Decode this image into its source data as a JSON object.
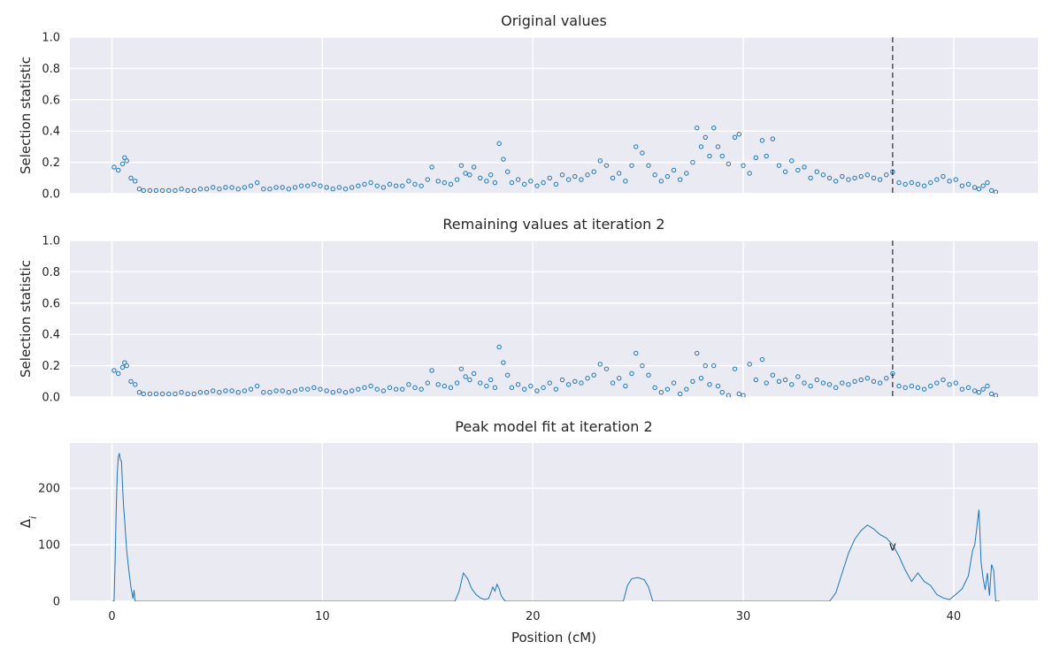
{
  "chart_data": [
    {
      "type": "scatter",
      "title": "Original values",
      "xlabel": "",
      "ylabel": "Selection statistic",
      "xlim": [
        -2,
        44
      ],
      "ylim": [
        0,
        1
      ],
      "yticks": [
        0.0,
        0.2,
        0.4,
        0.6,
        0.8,
        1.0
      ],
      "ytick_labels": [
        "0.0",
        "0.2",
        "0.4",
        "0.6",
        "0.8",
        "1.0"
      ],
      "grid": true,
      "marker": "hollow-circle",
      "series_color": "#1f77b4",
      "vline": {
        "x": 37.1,
        "style": "dashed",
        "color": "#000000"
      },
      "x": [
        0.1,
        0.3,
        0.5,
        0.6,
        0.7,
        0.9,
        1.1,
        1.3,
        1.5,
        1.8,
        2.1,
        2.4,
        2.7,
        3.0,
        3.3,
        3.6,
        3.9,
        4.2,
        4.5,
        4.8,
        5.1,
        5.4,
        5.7,
        6.0,
        6.3,
        6.6,
        6.9,
        7.2,
        7.5,
        7.8,
        8.1,
        8.4,
        8.7,
        9.0,
        9.3,
        9.6,
        9.9,
        10.2,
        10.5,
        10.8,
        11.1,
        11.4,
        11.7,
        12.0,
        12.3,
        12.6,
        12.9,
        13.2,
        13.5,
        13.8,
        14.1,
        14.4,
        14.7,
        15.0,
        15.2,
        15.5,
        15.8,
        16.1,
        16.4,
        16.6,
        16.8,
        17.0,
        17.2,
        17.5,
        17.8,
        18.0,
        18.2,
        18.4,
        18.6,
        18.8,
        19.0,
        19.3,
        19.6,
        19.9,
        20.2,
        20.5,
        20.8,
        21.1,
        21.4,
        21.7,
        22.0,
        22.3,
        22.6,
        22.9,
        23.2,
        23.5,
        23.8,
        24.1,
        24.4,
        24.7,
        24.9,
        25.2,
        25.5,
        25.8,
        26.1,
        26.4,
        26.7,
        27.0,
        27.3,
        27.6,
        27.8,
        28.0,
        28.2,
        28.4,
        28.6,
        28.8,
        29.0,
        29.3,
        29.6,
        29.8,
        30.0,
        30.3,
        30.6,
        30.9,
        31.1,
        31.4,
        31.7,
        32.0,
        32.3,
        32.6,
        32.9,
        33.2,
        33.5,
        33.8,
        34.1,
        34.4,
        34.7,
        35.0,
        35.3,
        35.6,
        35.9,
        36.2,
        36.5,
        36.8,
        37.1,
        37.4,
        37.7,
        38.0,
        38.3,
        38.6,
        38.9,
        39.2,
        39.5,
        39.8,
        40.1,
        40.4,
        40.7,
        41.0,
        41.2,
        41.4,
        41.6,
        41.8,
        42.0
      ],
      "y": [
        0.17,
        0.15,
        0.19,
        0.23,
        0.21,
        0.1,
        0.08,
        0.03,
        0.02,
        0.02,
        0.02,
        0.02,
        0.02,
        0.02,
        0.03,
        0.02,
        0.02,
        0.03,
        0.03,
        0.04,
        0.03,
        0.04,
        0.04,
        0.03,
        0.04,
        0.05,
        0.07,
        0.03,
        0.03,
        0.04,
        0.04,
        0.03,
        0.04,
        0.05,
        0.05,
        0.06,
        0.05,
        0.04,
        0.03,
        0.04,
        0.03,
        0.04,
        0.05,
        0.06,
        0.07,
        0.05,
        0.04,
        0.06,
        0.05,
        0.05,
        0.08,
        0.06,
        0.05,
        0.09,
        0.17,
        0.08,
        0.07,
        0.06,
        0.09,
        0.18,
        0.13,
        0.12,
        0.17,
        0.1,
        0.08,
        0.12,
        0.07,
        0.32,
        0.22,
        0.14,
        0.07,
        0.09,
        0.06,
        0.08,
        0.05,
        0.07,
        0.1,
        0.06,
        0.12,
        0.09,
        0.11,
        0.09,
        0.12,
        0.14,
        0.21,
        0.18,
        0.1,
        0.13,
        0.08,
        0.18,
        0.3,
        0.26,
        0.18,
        0.12,
        0.08,
        0.11,
        0.15,
        0.09,
        0.13,
        0.2,
        0.42,
        0.3,
        0.36,
        0.24,
        0.42,
        0.3,
        0.24,
        0.19,
        0.36,
        0.38,
        0.18,
        0.13,
        0.23,
        0.34,
        0.24,
        0.35,
        0.18,
        0.14,
        0.21,
        0.15,
        0.17,
        0.1,
        0.14,
        0.12,
        0.1,
        0.08,
        0.11,
        0.09,
        0.1,
        0.11,
        0.12,
        0.1,
        0.09,
        0.12,
        0.14,
        0.07,
        0.06,
        0.07,
        0.06,
        0.05,
        0.07,
        0.09,
        0.11,
        0.08,
        0.09,
        0.05,
        0.06,
        0.04,
        0.03,
        0.05,
        0.07,
        0.02,
        0.01
      ]
    },
    {
      "type": "scatter",
      "title": "Remaining values at iteration 2",
      "xlabel": "",
      "ylabel": "Selection statistic",
      "xlim": [
        -2,
        44
      ],
      "ylim": [
        0,
        1
      ],
      "yticks": [
        0.0,
        0.2,
        0.4,
        0.6,
        0.8,
        1.0
      ],
      "ytick_labels": [
        "0.0",
        "0.2",
        "0.4",
        "0.6",
        "0.8",
        "1.0"
      ],
      "grid": true,
      "marker": "hollow-circle",
      "series_color": "#1f77b4",
      "vline": {
        "x": 37.1,
        "style": "dashed",
        "color": "#000000"
      },
      "x": [
        0.1,
        0.3,
        0.5,
        0.6,
        0.7,
        0.9,
        1.1,
        1.3,
        1.5,
        1.8,
        2.1,
        2.4,
        2.7,
        3.0,
        3.3,
        3.6,
        3.9,
        4.2,
        4.5,
        4.8,
        5.1,
        5.4,
        5.7,
        6.0,
        6.3,
        6.6,
        6.9,
        7.2,
        7.5,
        7.8,
        8.1,
        8.4,
        8.7,
        9.0,
        9.3,
        9.6,
        9.9,
        10.2,
        10.5,
        10.8,
        11.1,
        11.4,
        11.7,
        12.0,
        12.3,
        12.6,
        12.9,
        13.2,
        13.5,
        13.8,
        14.1,
        14.4,
        14.7,
        15.0,
        15.2,
        15.5,
        15.8,
        16.1,
        16.4,
        16.6,
        16.8,
        17.0,
        17.2,
        17.5,
        17.8,
        18.0,
        18.2,
        18.4,
        18.6,
        18.8,
        19.0,
        19.3,
        19.6,
        19.9,
        20.2,
        20.5,
        20.8,
        21.1,
        21.4,
        21.7,
        22.0,
        22.3,
        22.6,
        22.9,
        23.2,
        23.5,
        23.8,
        24.1,
        24.4,
        24.7,
        24.9,
        25.2,
        25.5,
        25.8,
        26.1,
        26.4,
        26.7,
        27.0,
        27.3,
        27.6,
        27.8,
        28.0,
        28.2,
        28.4,
        28.6,
        28.8,
        29.0,
        29.3,
        29.6,
        29.8,
        30.0,
        30.3,
        30.6,
        30.9,
        31.1,
        31.4,
        31.7,
        32.0,
        32.3,
        32.6,
        32.9,
        33.2,
        33.5,
        33.8,
        34.1,
        34.4,
        34.7,
        35.0,
        35.3,
        35.6,
        35.9,
        36.2,
        36.5,
        36.8,
        37.1,
        37.4,
        37.7,
        38.0,
        38.3,
        38.6,
        38.9,
        39.2,
        39.5,
        39.8,
        40.1,
        40.4,
        40.7,
        41.0,
        41.2,
        41.4,
        41.6,
        41.8,
        42.0
      ],
      "y": [
        0.17,
        0.15,
        0.19,
        0.22,
        0.2,
        0.1,
        0.08,
        0.03,
        0.02,
        0.02,
        0.02,
        0.02,
        0.02,
        0.02,
        0.03,
        0.02,
        0.02,
        0.03,
        0.03,
        0.04,
        0.03,
        0.04,
        0.04,
        0.03,
        0.04,
        0.05,
        0.07,
        0.03,
        0.03,
        0.04,
        0.04,
        0.03,
        0.04,
        0.05,
        0.05,
        0.06,
        0.05,
        0.04,
        0.03,
        0.04,
        0.03,
        0.04,
        0.05,
        0.06,
        0.07,
        0.05,
        0.04,
        0.06,
        0.05,
        0.05,
        0.08,
        0.06,
        0.05,
        0.09,
        0.17,
        0.08,
        0.07,
        0.06,
        0.09,
        0.18,
        0.13,
        0.11,
        0.15,
        0.09,
        0.07,
        0.11,
        0.06,
        0.32,
        0.22,
        0.14,
        0.06,
        0.08,
        0.05,
        0.07,
        0.04,
        0.06,
        0.09,
        0.05,
        0.11,
        0.08,
        0.1,
        0.09,
        0.12,
        0.14,
        0.21,
        0.18,
        0.09,
        0.12,
        0.07,
        0.15,
        0.28,
        0.2,
        0.14,
        0.06,
        0.03,
        0.05,
        0.09,
        0.02,
        0.05,
        0.1,
        0.28,
        0.12,
        0.2,
        0.08,
        0.2,
        0.07,
        0.03,
        0.01,
        0.18,
        0.02,
        0.01,
        0.21,
        0.11,
        0.24,
        0.09,
        0.14,
        0.1,
        0.11,
        0.08,
        0.13,
        0.09,
        0.07,
        0.11,
        0.09,
        0.08,
        0.06,
        0.09,
        0.08,
        0.1,
        0.11,
        0.12,
        0.1,
        0.09,
        0.12,
        0.15,
        0.07,
        0.06,
        0.07,
        0.06,
        0.05,
        0.07,
        0.09,
        0.11,
        0.08,
        0.09,
        0.05,
        0.06,
        0.04,
        0.03,
        0.05,
        0.07,
        0.02,
        0.01
      ]
    },
    {
      "type": "line",
      "title": "Peak model fit at iteration 2",
      "xlabel": "Position (cM)",
      "ylabel": "Δ",
      "ylabel_subscript": "i",
      "xlim": [
        -2,
        44
      ],
      "ylim": [
        0,
        280
      ],
      "xticks": [
        0,
        10,
        20,
        30,
        40
      ],
      "xtick_labels": [
        "0",
        "10",
        "20",
        "30",
        "40"
      ],
      "yticks": [
        0,
        100,
        200
      ],
      "ytick_labels": [
        "0",
        "100",
        "200"
      ],
      "grid": true,
      "series_color": "#1f77b4",
      "annotation": {
        "text": "v",
        "x": 37.1,
        "y": 96
      },
      "x": [
        0.0,
        0.1,
        0.15,
        0.2,
        0.25,
        0.3,
        0.35,
        0.4,
        0.45,
        0.5,
        0.55,
        0.6,
        0.65,
        0.7,
        0.8,
        0.9,
        1.0,
        1.05,
        1.1,
        1.2,
        16.3,
        16.5,
        16.7,
        16.9,
        17.1,
        17.3,
        17.5,
        17.7,
        17.9,
        18.0,
        18.1,
        18.2,
        18.3,
        18.4,
        18.5,
        18.6,
        18.7,
        24.3,
        24.5,
        24.7,
        25.0,
        25.3,
        25.5,
        25.7,
        34.1,
        34.4,
        34.7,
        35.0,
        35.3,
        35.6,
        35.9,
        36.2,
        36.5,
        36.8,
        37.1,
        37.4,
        37.7,
        38.0,
        38.3,
        38.6,
        38.9,
        39.2,
        39.5,
        39.8,
        40.1,
        40.4,
        40.7,
        40.9,
        41.0,
        41.1,
        41.2,
        41.25,
        41.3,
        41.4,
        41.5,
        41.6,
        41.7,
        41.8,
        41.9,
        42.0,
        42.1,
        42.2
      ],
      "y": [
        0,
        0,
        70,
        160,
        225,
        255,
        262,
        250,
        248,
        205,
        170,
        145,
        118,
        90,
        55,
        25,
        5,
        20,
        0,
        0,
        0,
        18,
        50,
        40,
        22,
        12,
        6,
        3,
        5,
        15,
        25,
        18,
        30,
        22,
        10,
        4,
        0,
        0,
        28,
        40,
        42,
        38,
        25,
        0,
        0,
        15,
        50,
        85,
        110,
        125,
        135,
        128,
        118,
        112,
        100,
        80,
        55,
        35,
        50,
        35,
        28,
        12,
        6,
        3,
        12,
        22,
        45,
        90,
        100,
        130,
        162,
        120,
        70,
        40,
        20,
        50,
        10,
        65,
        55,
        0,
        0,
        0
      ]
    }
  ]
}
